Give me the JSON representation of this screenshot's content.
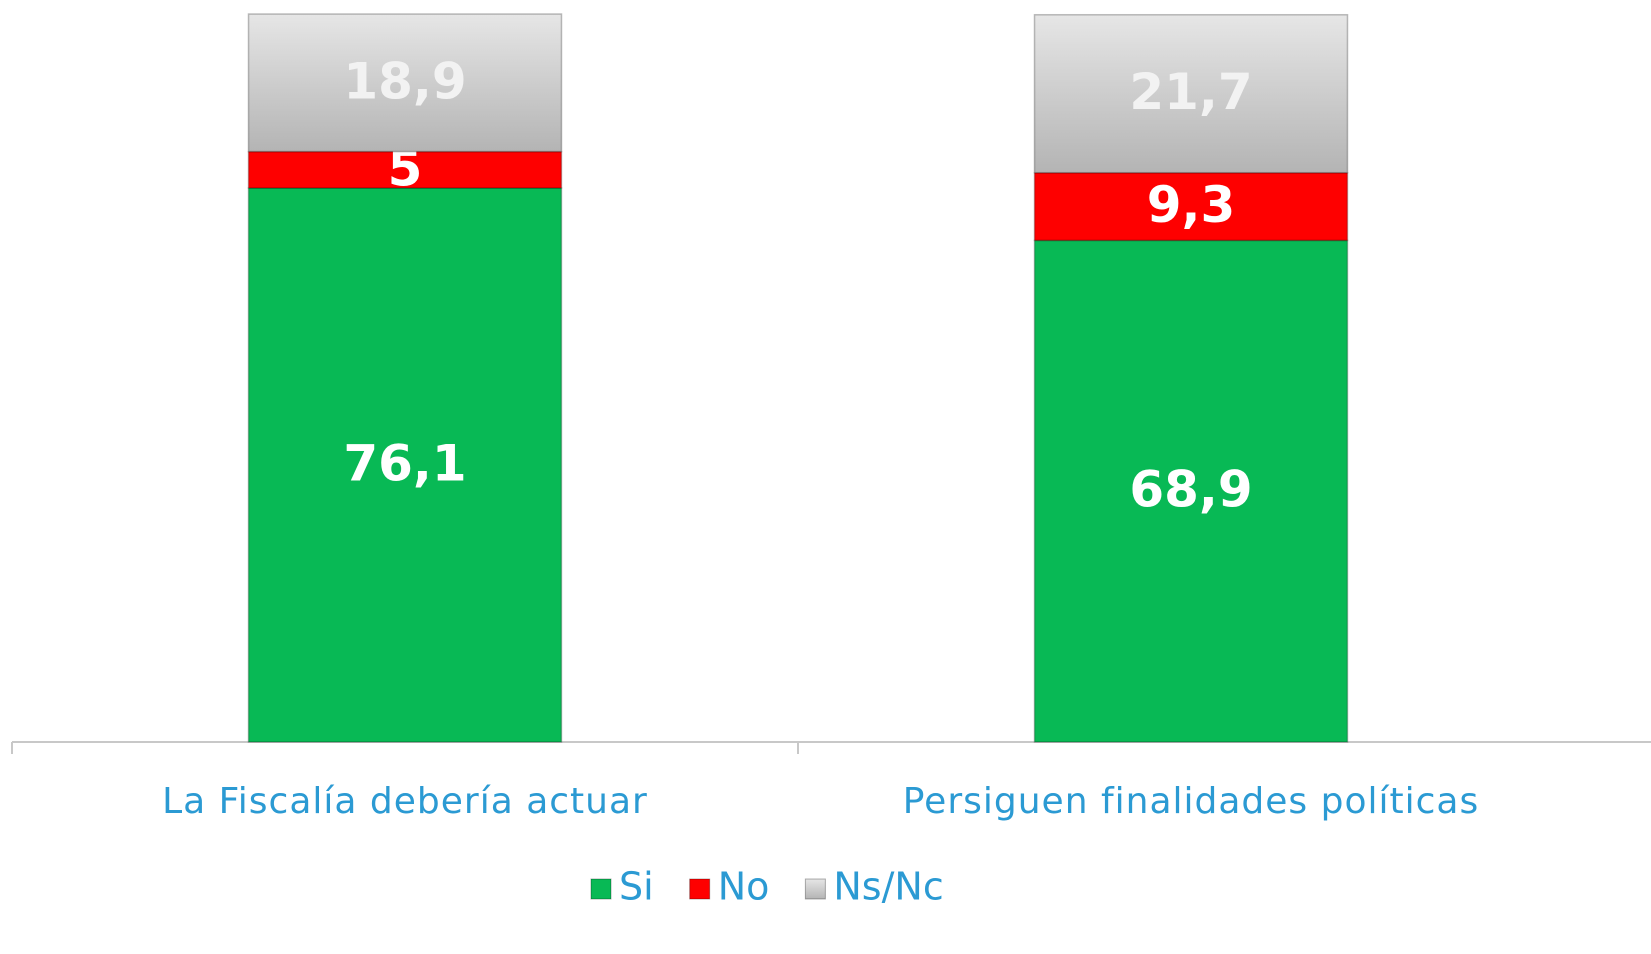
{
  "chart_data": {
    "type": "stacked_bar",
    "categories": [
      "La Fiscalía debería actuar",
      "Persiguen finalidades políticas"
    ],
    "series": [
      {
        "name": "Si",
        "color": "#08b955",
        "values": [
          76.1,
          68.9
        ],
        "value_labels": [
          "76,1",
          "68,9"
        ]
      },
      {
        "name": "No",
        "color": "#fe0000",
        "values": [
          5,
          9.3
        ],
        "value_labels": [
          "5",
          "9,3"
        ]
      },
      {
        "name": "Ns/Nc",
        "color": "#c8c8c8",
        "values": [
          18.9,
          21.7
        ],
        "value_labels": [
          "18,9",
          "21,7"
        ]
      }
    ],
    "legend": "bottom"
  }
}
